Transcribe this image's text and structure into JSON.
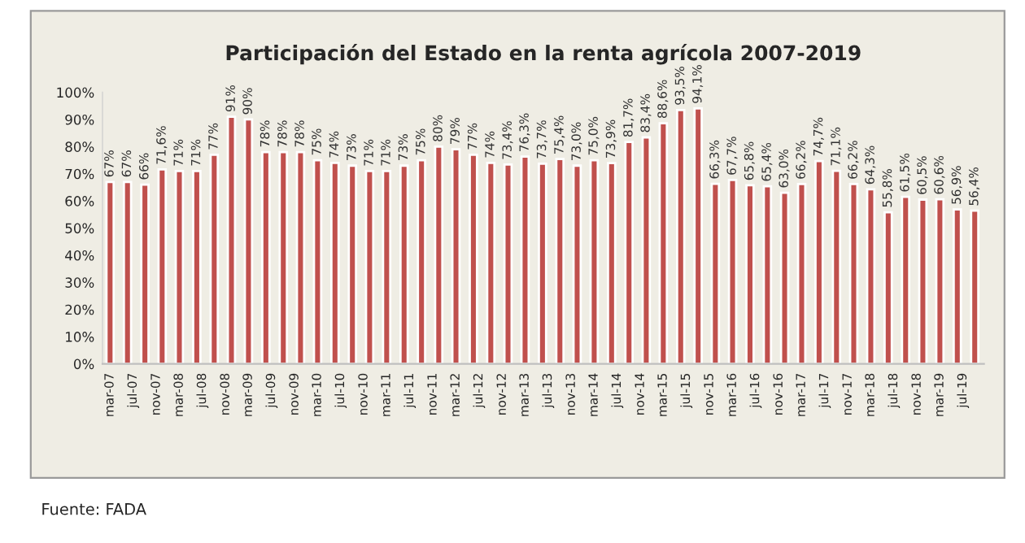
{
  "chart_data": {
    "type": "bar",
    "title": "Participación del Estado en la renta agrícola 2007-2019",
    "x": [
      "2007-03",
      "2007-06",
      "2007-09",
      "2007-12",
      "2008-03",
      "2008-06",
      "2008-09",
      "2008-12",
      "2009-03",
      "2009-06",
      "2009-09",
      "2009-12",
      "2010-03",
      "2010-06",
      "2010-09",
      "2010-12",
      "2011-03",
      "2011-06",
      "2011-09",
      "2011-12",
      "2012-03",
      "2012-06",
      "2012-09",
      "2012-12",
      "2013-03",
      "2013-06",
      "2013-09",
      "2013-12",
      "2014-03",
      "2014-06",
      "2014-09",
      "2014-12",
      "2015-03",
      "2015-06",
      "2015-09",
      "2015-12",
      "2016-03",
      "2016-06",
      "2016-09",
      "2016-12",
      "2017-03",
      "2017-06",
      "2017-09",
      "2017-12",
      "2018-03",
      "2018-06",
      "2018-09",
      "2018-12",
      "2019-03",
      "2019-06",
      "2019-09"
    ],
    "values": [
      67,
      67,
      66,
      71.6,
      71,
      71,
      77,
      91,
      90,
      78,
      78,
      78,
      75,
      74,
      73,
      71,
      71,
      73,
      75,
      80,
      79,
      77,
      74,
      73.4,
      76.3,
      73.7,
      75.4,
      73.0,
      75.0,
      73.9,
      81.7,
      83.4,
      88.6,
      93.5,
      94.1,
      66.3,
      67.7,
      65.8,
      65.4,
      63.0,
      66.2,
      74.7,
      71.1,
      66.2,
      64.3,
      55.8,
      61.5,
      60.5,
      60.6,
      56.9,
      56.4
    ],
    "value_labels": [
      "67%",
      "67%",
      "66%",
      "71,6%",
      "71%",
      "71%",
      "77%",
      "91%",
      "90%",
      "78%",
      "78%",
      "78%",
      "75%",
      "74%",
      "73%",
      "71%",
      "71%",
      "73%",
      "75%",
      "80%",
      "79%",
      "77%",
      "74%",
      "73,4%",
      "76,3%",
      "73,7%",
      "75,4%",
      "73,0%",
      "75,0%",
      "73,9%",
      "81,7%",
      "83,4%",
      "88,6%",
      "93,5%",
      "94,1%",
      "66,3%",
      "67,7%",
      "65,8%",
      "65,4%",
      "63,0%",
      "66,2%",
      "74,7%",
      "71,1%",
      "66,2%",
      "64,3%",
      "55,8%",
      "61,5%",
      "60,5%",
      "60,6%",
      "56,9%",
      "56,4%"
    ],
    "color": "#c0504d",
    "ylim": [
      0,
      100
    ],
    "yticks": [
      {
        "value": 0,
        "label": "0%"
      },
      {
        "value": 10,
        "label": "10%"
      },
      {
        "value": 20,
        "label": "20%"
      },
      {
        "value": 30,
        "label": "30%"
      },
      {
        "value": 40,
        "label": "40%"
      },
      {
        "value": 50,
        "label": "50%"
      },
      {
        "value": 60,
        "label": "60%"
      },
      {
        "value": 70,
        "label": "70%"
      },
      {
        "value": 80,
        "label": "80%"
      },
      {
        "value": 90,
        "label": "90%"
      },
      {
        "value": 100,
        "label": "100%"
      }
    ],
    "xlim": [
      "2007-01-20",
      "2019-10-20"
    ],
    "xticks": [
      {
        "value": "2007-03",
        "label": "mar-07"
      },
      {
        "value": "2007-07",
        "label": "jul-07"
      },
      {
        "value": "2007-11",
        "label": "nov-07"
      },
      {
        "value": "2008-03",
        "label": "mar-08"
      },
      {
        "value": "2008-07",
        "label": "jul-08"
      },
      {
        "value": "2008-11",
        "label": "nov-08"
      },
      {
        "value": "2009-03",
        "label": "mar-09"
      },
      {
        "value": "2009-07",
        "label": "jul-09"
      },
      {
        "value": "2009-11",
        "label": "nov-09"
      },
      {
        "value": "2010-03",
        "label": "mar-10"
      },
      {
        "value": "2010-07",
        "label": "jul-10"
      },
      {
        "value": "2010-11",
        "label": "nov-10"
      },
      {
        "value": "2011-03",
        "label": "mar-11"
      },
      {
        "value": "2011-07",
        "label": "jul-11"
      },
      {
        "value": "2011-11",
        "label": "nov-11"
      },
      {
        "value": "2012-03",
        "label": "mar-12"
      },
      {
        "value": "2012-07",
        "label": "jul-12"
      },
      {
        "value": "2012-11",
        "label": "nov-12"
      },
      {
        "value": "2013-03",
        "label": "mar-13"
      },
      {
        "value": "2013-07",
        "label": "jul-13"
      },
      {
        "value": "2013-11",
        "label": "nov-13"
      },
      {
        "value": "2014-03",
        "label": "mar-14"
      },
      {
        "value": "2014-07",
        "label": "jul-14"
      },
      {
        "value": "2014-11",
        "label": "nov-14"
      },
      {
        "value": "2015-03",
        "label": "mar-15"
      },
      {
        "value": "2015-07",
        "label": "jul-15"
      },
      {
        "value": "2015-11",
        "label": "nov-15"
      },
      {
        "value": "2016-03",
        "label": "mar-16"
      },
      {
        "value": "2016-07",
        "label": "jul-16"
      },
      {
        "value": "2016-11",
        "label": "nov-16"
      },
      {
        "value": "2017-03",
        "label": "mar-17"
      },
      {
        "value": "2017-07",
        "label": "jul-17"
      },
      {
        "value": "2017-11",
        "label": "nov-17"
      },
      {
        "value": "2018-03",
        "label": "mar-18"
      },
      {
        "value": "2018-07",
        "label": "jul-18"
      },
      {
        "value": "2018-11",
        "label": "nov-18"
      },
      {
        "value": "2019-03",
        "label": "mar-19"
      },
      {
        "value": "2019-07",
        "label": "jul-19"
      }
    ],
    "grid": false,
    "legend": false,
    "annotations": [
      "Fuente: FADA"
    ]
  }
}
